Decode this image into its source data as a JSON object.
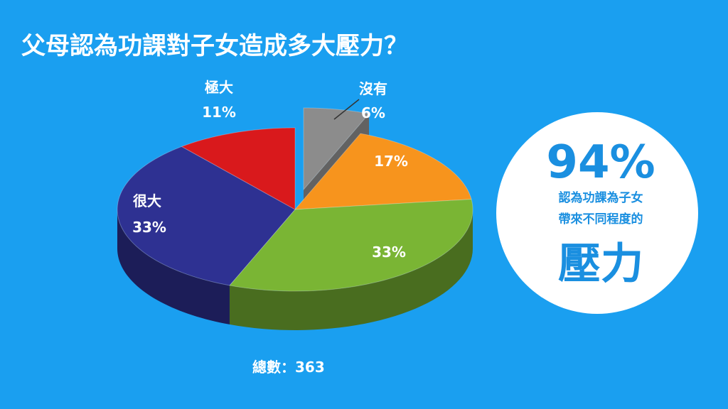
{
  "chart_data": {
    "type": "pie",
    "title": "父母認為功課對子女造成多大壓力？",
    "categories": [
      "沒有",
      null,
      null,
      "很大",
      "極大"
    ],
    "values": [
      6,
      17,
      33,
      33,
      11
    ],
    "value_labels": [
      "6%",
      "17%",
      "33%",
      "33%",
      "11%"
    ],
    "colors": [
      "#8c8c8c",
      "#f7941d",
      "#7ab534",
      "#2e3192",
      "#d9191c"
    ],
    "note": "總數：363",
    "callout": {
      "headline": "94%",
      "lines": [
        "認為功課為子女",
        "帶來不同程度的"
      ],
      "emphasis": "壓力"
    }
  }
}
